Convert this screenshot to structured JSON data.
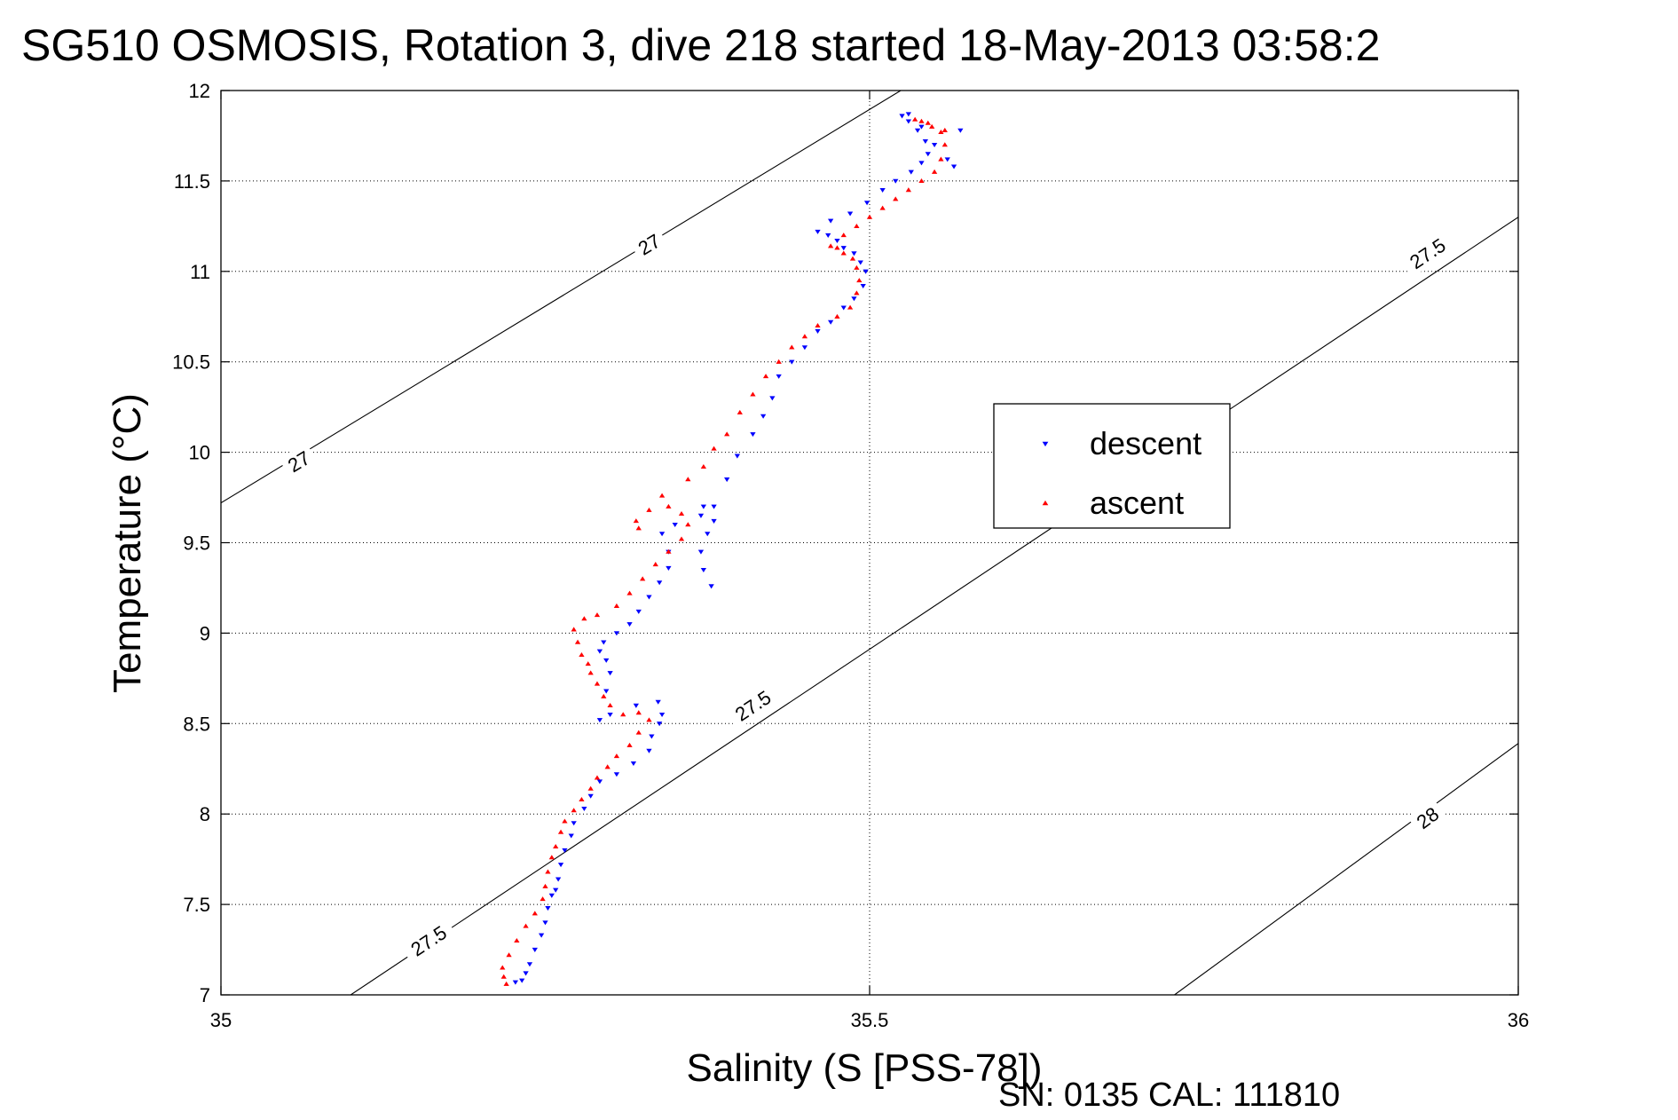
{
  "chart_data": {
    "type": "scatter",
    "title": "SG510 OSMOSIS, Rotation 3, dive 218 started 18-May-2013 03:58:2",
    "xlabel": "Salinity (S [PSS-78])",
    "ylabel": "Temperature (°C)",
    "xlim": [
      35,
      36
    ],
    "ylim": [
      7,
      12
    ],
    "x_ticks": [
      35,
      35.5,
      36
    ],
    "x_tick_labels": [
      "35",
      "35.5",
      "36"
    ],
    "y_ticks": [
      7,
      7.5,
      8,
      8.5,
      9,
      9.5,
      10,
      10.5,
      11,
      11.5,
      12
    ],
    "y_tick_labels": [
      "7",
      "7.5",
      "8",
      "8.5",
      "9",
      "9.5",
      "10",
      "10.5",
      "11",
      "11.5",
      "12"
    ],
    "grid": true,
    "legend_position": "center-right",
    "footer_text": "SN: 0135  CAL: 111810",
    "density_contours": [
      {
        "label": "27",
        "points": [
          [
            35,
            9.72
          ],
          [
            35.524,
            12
          ]
        ],
        "labels_at": [
          [
            35.06,
            9.95
          ],
          [
            35.33,
            11.15
          ]
        ]
      },
      {
        "label": "27.5",
        "points": [
          [
            35.1,
            7
          ],
          [
            36,
            11.3
          ]
        ],
        "labels_at": [
          [
            35.16,
            7.3
          ],
          [
            35.41,
            8.6
          ],
          [
            35.93,
            11.1
          ]
        ]
      },
      {
        "label": "28",
        "points": [
          [
            35.735,
            7
          ],
          [
            36,
            8.39
          ]
        ],
        "labels_at": [
          [
            35.93,
            7.98
          ]
        ]
      }
    ],
    "series": [
      {
        "name": "descent",
        "color": "#0000ff",
        "marker": "triangle-down",
        "points": [
          [
            35.227,
            7.07
          ],
          [
            35.232,
            7.08
          ],
          [
            35.235,
            7.12
          ],
          [
            35.238,
            7.17
          ],
          [
            35.242,
            7.25
          ],
          [
            35.247,
            7.33
          ],
          [
            35.25,
            7.4
          ],
          [
            35.252,
            7.48
          ],
          [
            35.255,
            7.55
          ],
          [
            35.258,
            7.58
          ],
          [
            35.26,
            7.64
          ],
          [
            35.262,
            7.72
          ],
          [
            35.265,
            7.8
          ],
          [
            35.27,
            7.88
          ],
          [
            35.272,
            7.95
          ],
          [
            35.28,
            8.03
          ],
          [
            35.285,
            8.1
          ],
          [
            35.292,
            8.18
          ],
          [
            35.305,
            8.22
          ],
          [
            35.318,
            8.28
          ],
          [
            35.33,
            8.35
          ],
          [
            35.332,
            8.43
          ],
          [
            35.338,
            8.5
          ],
          [
            35.34,
            8.55
          ],
          [
            35.337,
            8.62
          ],
          [
            35.32,
            8.6
          ],
          [
            35.3,
            8.55
          ],
          [
            35.292,
            8.52
          ],
          [
            35.297,
            8.68
          ],
          [
            35.3,
            8.78
          ],
          [
            35.297,
            8.85
          ],
          [
            35.292,
            8.9
          ],
          [
            35.295,
            8.95
          ],
          [
            35.305,
            9.0
          ],
          [
            35.315,
            9.05
          ],
          [
            35.322,
            9.12
          ],
          [
            35.33,
            9.2
          ],
          [
            35.338,
            9.28
          ],
          [
            35.345,
            9.36
          ],
          [
            35.345,
            9.45
          ],
          [
            35.34,
            9.55
          ],
          [
            35.35,
            9.6
          ],
          [
            35.37,
            9.65
          ],
          [
            35.372,
            9.7
          ],
          [
            35.38,
            9.62
          ],
          [
            35.375,
            9.55
          ],
          [
            35.37,
            9.45
          ],
          [
            35.372,
            9.35
          ],
          [
            35.378,
            9.26
          ],
          [
            35.38,
            9.7
          ],
          [
            35.39,
            9.85
          ],
          [
            35.398,
            9.98
          ],
          [
            35.41,
            10.1
          ],
          [
            35.418,
            10.2
          ],
          [
            35.425,
            10.3
          ],
          [
            35.43,
            10.42
          ],
          [
            35.44,
            10.5
          ],
          [
            35.45,
            10.58
          ],
          [
            35.46,
            10.67
          ],
          [
            35.47,
            10.72
          ],
          [
            35.48,
            10.8
          ],
          [
            35.488,
            10.85
          ],
          [
            35.495,
            10.92
          ],
          [
            35.497,
            11.0
          ],
          [
            35.493,
            11.05
          ],
          [
            35.488,
            11.1
          ],
          [
            35.48,
            11.13
          ],
          [
            35.475,
            11.17
          ],
          [
            35.468,
            11.2
          ],
          [
            35.46,
            11.22
          ],
          [
            35.47,
            11.28
          ],
          [
            35.485,
            11.32
          ],
          [
            35.498,
            11.38
          ],
          [
            35.51,
            11.45
          ],
          [
            35.52,
            11.5
          ],
          [
            35.532,
            11.55
          ],
          [
            35.54,
            11.6
          ],
          [
            35.545,
            11.65
          ],
          [
            35.543,
            11.72
          ],
          [
            35.537,
            11.78
          ],
          [
            35.53,
            11.83
          ],
          [
            35.525,
            11.86
          ],
          [
            35.53,
            11.87
          ],
          [
            35.54,
            11.8
          ],
          [
            35.55,
            11.7
          ],
          [
            35.56,
            11.62
          ],
          [
            35.565,
            11.58
          ],
          [
            35.57,
            11.78
          ]
        ]
      },
      {
        "name": "ascent",
        "color": "#ff0000",
        "marker": "triangle-up",
        "points": [
          [
            35.22,
            7.06
          ],
          [
            35.218,
            7.1
          ],
          [
            35.217,
            7.15
          ],
          [
            35.222,
            7.22
          ],
          [
            35.228,
            7.3
          ],
          [
            35.235,
            7.38
          ],
          [
            35.242,
            7.45
          ],
          [
            35.248,
            7.53
          ],
          [
            35.25,
            7.6
          ],
          [
            35.252,
            7.68
          ],
          [
            35.255,
            7.76
          ],
          [
            35.258,
            7.82
          ],
          [
            35.262,
            7.9
          ],
          [
            35.265,
            7.96
          ],
          [
            35.272,
            8.02
          ],
          [
            35.278,
            8.08
          ],
          [
            35.285,
            8.14
          ],
          [
            35.29,
            8.2
          ],
          [
            35.298,
            8.26
          ],
          [
            35.305,
            8.32
          ],
          [
            35.315,
            8.38
          ],
          [
            35.322,
            8.45
          ],
          [
            35.33,
            8.52
          ],
          [
            35.322,
            8.56
          ],
          [
            35.31,
            8.55
          ],
          [
            35.3,
            8.6
          ],
          [
            35.295,
            8.65
          ],
          [
            35.29,
            8.72
          ],
          [
            35.285,
            8.78
          ],
          [
            35.283,
            8.83
          ],
          [
            35.278,
            8.88
          ],
          [
            35.275,
            8.95
          ],
          [
            35.272,
            9.02
          ],
          [
            35.28,
            9.08
          ],
          [
            35.29,
            9.1
          ],
          [
            35.305,
            9.15
          ],
          [
            35.315,
            9.22
          ],
          [
            35.325,
            9.3
          ],
          [
            35.335,
            9.38
          ],
          [
            35.345,
            9.45
          ],
          [
            35.355,
            9.52
          ],
          [
            35.36,
            9.6
          ],
          [
            35.355,
            9.66
          ],
          [
            35.345,
            9.7
          ],
          [
            35.33,
            9.68
          ],
          [
            35.32,
            9.62
          ],
          [
            35.322,
            9.58
          ],
          [
            35.34,
            9.76
          ],
          [
            35.36,
            9.85
          ],
          [
            35.372,
            9.92
          ],
          [
            35.38,
            10.02
          ],
          [
            35.39,
            10.1
          ],
          [
            35.4,
            10.22
          ],
          [
            35.41,
            10.32
          ],
          [
            35.42,
            10.42
          ],
          [
            35.43,
            10.5
          ],
          [
            35.44,
            10.58
          ],
          [
            35.45,
            10.64
          ],
          [
            35.46,
            10.7
          ],
          [
            35.475,
            10.75
          ],
          [
            35.485,
            10.8
          ],
          [
            35.49,
            10.88
          ],
          [
            35.492,
            10.95
          ],
          [
            35.49,
            11.02
          ],
          [
            35.487,
            11.07
          ],
          [
            35.48,
            11.1
          ],
          [
            35.475,
            11.13
          ],
          [
            35.47,
            11.14
          ],
          [
            35.48,
            11.2
          ],
          [
            35.49,
            11.25
          ],
          [
            35.5,
            11.3
          ],
          [
            35.51,
            11.35
          ],
          [
            35.52,
            11.4
          ],
          [
            35.53,
            11.45
          ],
          [
            35.54,
            11.5
          ],
          [
            35.55,
            11.55
          ],
          [
            35.555,
            11.62
          ],
          [
            35.558,
            11.7
          ],
          [
            35.555,
            11.77
          ],
          [
            35.548,
            11.8
          ],
          [
            35.54,
            11.83
          ],
          [
            35.535,
            11.84
          ],
          [
            35.545,
            11.82
          ],
          [
            35.558,
            11.78
          ]
        ]
      }
    ]
  }
}
